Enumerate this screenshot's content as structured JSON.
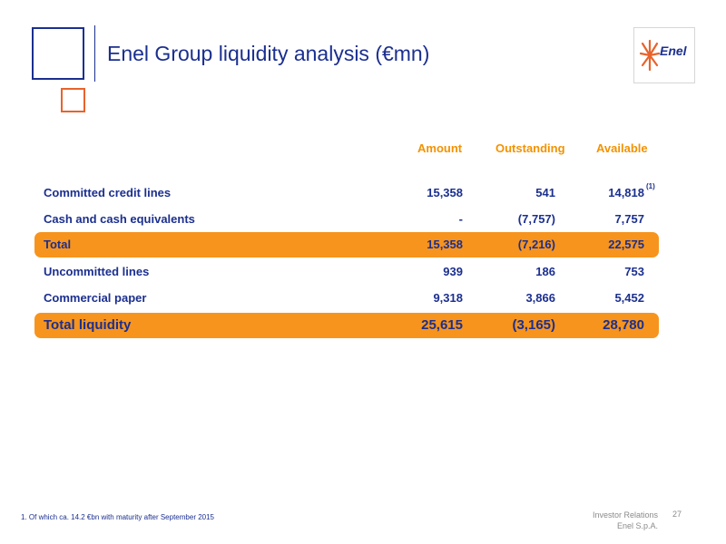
{
  "title": "Enel Group liquidity analysis (€mn)",
  "logo": {
    "text": "Enel",
    "icon": "enel-sun-logo-icon",
    "color": "#e8632c"
  },
  "table": {
    "headers": [
      "Amount",
      "Outstanding",
      "Available"
    ],
    "rows": [
      {
        "label": "Committed credit lines",
        "amount": "15,358",
        "outstanding": "541",
        "available": "14,818",
        "highlight": false
      },
      {
        "label": "Cash and cash equivalents",
        "amount": "-",
        "outstanding": "(7,757)",
        "available": "7,757",
        "highlight": false
      },
      {
        "label": "Total",
        "amount": "15,358",
        "outstanding": "(7,216)",
        "available": "22,575",
        "highlight": true
      },
      {
        "label": "Uncommitted lines",
        "amount": "939",
        "outstanding": "186",
        "available": "753",
        "highlight": false
      },
      {
        "label": "Commercial paper",
        "amount": "9,318",
        "outstanding": "3,866",
        "available": "5,452",
        "highlight": false
      },
      {
        "label": "Total liquidity",
        "amount": "25,615",
        "outstanding": "(3,165)",
        "available": "28,780",
        "highlight": true
      }
    ],
    "footnote_marker": "(1)"
  },
  "footnote": "1.  Of which ca. 14.2 €bn with maturity after September 2015",
  "footer": {
    "line1": "Investor Relations",
    "line2": "Enel S.p.A.",
    "page": "27"
  },
  "colors": {
    "brand_blue": "#1b2f8f",
    "accent_orange": "#f7941d",
    "header_orange": "#f39200"
  }
}
